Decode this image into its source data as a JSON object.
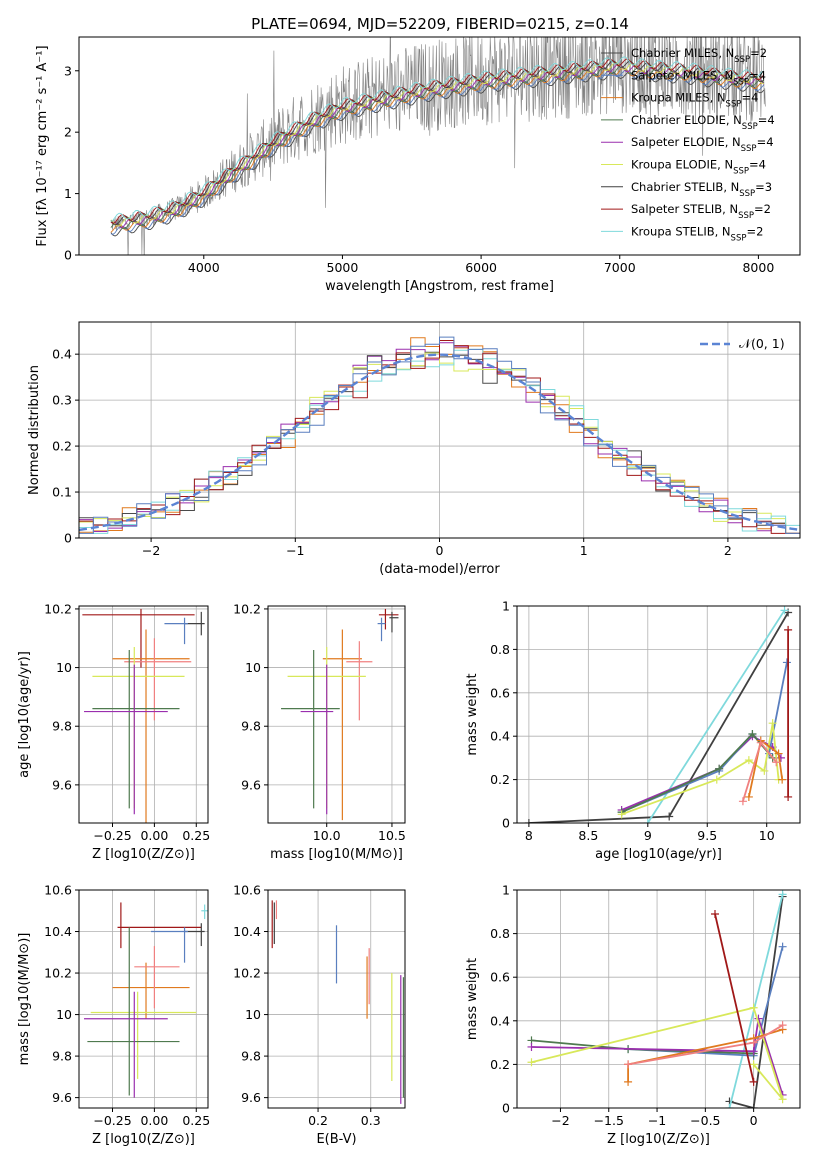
{
  "figure": {
    "title": "PLATE=0694, MJD=52209, FIBERID=0215, z=0.14"
  },
  "chart_data": [
    {
      "id": "spectrum",
      "type": "line",
      "xlabel": "wavelength [Angstrom, rest frame]",
      "ylabel": "Flux [fλ 10⁻¹⁷ erg cm⁻² s⁻¹ A⁻¹]",
      "xlim": [
        3100,
        8300
      ],
      "ylim": [
        0,
        3.55
      ],
      "xticks": [
        4000,
        5000,
        6000,
        7000,
        8000
      ],
      "yticks": [
        0,
        1,
        2,
        3
      ],
      "grid": false,
      "legend_position": "top-right",
      "data_continuum": {
        "x": [
          3350,
          3600,
          3800,
          4000,
          4200,
          4500,
          4800,
          5000,
          5300,
          5600,
          6000,
          6400,
          6800,
          7000,
          7200,
          7500,
          7800,
          8050
        ],
        "y": [
          0.5,
          0.6,
          0.75,
          1.0,
          1.35,
          1.85,
          2.25,
          2.45,
          2.6,
          2.75,
          2.9,
          3.0,
          3.1,
          3.15,
          3.1,
          3.05,
          2.95,
          2.9
        ]
      },
      "series": [
        {
          "name": "Chabrier MILES, N_SSP=2",
          "color": "#4a4a4a"
        },
        {
          "name": "Salpeter MILES, N_SSP=4",
          "color": "#5a7fbf"
        },
        {
          "name": "Kroupa MILES, N_SSP=4",
          "color": "#e07a1f"
        },
        {
          "name": "Chabrier ELODIE, N_SSP=4",
          "color": "#4f7a4f"
        },
        {
          "name": "Salpeter ELODIE, N_SSP=4",
          "color": "#9a2fae"
        },
        {
          "name": "Kroupa ELODIE, N_SSP=4",
          "color": "#d8e85a"
        },
        {
          "name": "Chabrier STELIB, N_SSP=3",
          "color": "#404040"
        },
        {
          "name": "Salpeter STELIB, N_SSP=2",
          "color": "#a01818"
        },
        {
          "name": "Kroupa STELIB, N_SSP=2",
          "color": "#7fd9dc"
        }
      ]
    },
    {
      "id": "residuals",
      "type": "line",
      "xlabel": "(data-model)/error",
      "ylabel": "Normed distribution",
      "xlim": [
        -2.5,
        2.5
      ],
      "ylim": [
        0,
        0.47
      ],
      "xticks": [
        -2,
        -1,
        0,
        1,
        2
      ],
      "yticks": [
        0.0,
        0.1,
        0.2,
        0.3,
        0.4
      ],
      "grid": true,
      "legend": "𝒩(0, 1)",
      "legend_position": "top-right",
      "normal_color": "#5b84d4",
      "hist_colors": [
        "#e07a1f",
        "#9a2fae",
        "#4a4a4a",
        "#d8e85a",
        "#7fd9dc",
        "#a01818",
        "#5a7fbf"
      ]
    },
    {
      "id": "age-vs-Z",
      "type": "scatter",
      "xlabel": "Z [log10(Z/Z⊙)]",
      "ylabel": "age [log10(age/yr)]",
      "xlim": [
        -0.45,
        0.32
      ],
      "ylim": [
        9.47,
        10.21
      ],
      "xticks": [
        -0.25,
        0.0,
        0.25
      ],
      "xticklabels": [
        "−0.25",
        "0.00",
        "0.25"
      ],
      "yticks": [
        9.6,
        9.8,
        10.0,
        10.2
      ],
      "grid": true,
      "points": [
        {
          "x": -0.08,
          "y": 10.18,
          "xerr": [
            0.35,
            0.32
          ],
          "yerr": [
            0.18,
            0.02
          ],
          "color": "#a01818"
        },
        {
          "x": 0.28,
          "y": 10.15,
          "xerr": [
            0.1,
            0.02
          ],
          "yerr": [
            0.04,
            0.04
          ],
          "color": "#404040"
        },
        {
          "x": 0.18,
          "y": 10.15,
          "xerr": [
            0.12,
            0.02
          ],
          "yerr": [
            0.07,
            0.02
          ],
          "color": "#5a7fbf"
        },
        {
          "x": -0.05,
          "y": 10.03,
          "xerr": [
            0.2,
            0.26
          ],
          "yerr": [
            0.6,
            0.1
          ],
          "color": "#e07a1f"
        },
        {
          "x": 0.0,
          "y": 10.02,
          "xerr": [
            0.18,
            0.22
          ],
          "yerr": [
            0.2,
            0.08
          ],
          "color": "#f08080"
        },
        {
          "x": -0.12,
          "y": 9.97,
          "xerr": [
            0.25,
            0.3
          ],
          "yerr": [
            0.45,
            0.1
          ],
          "color": "#d8e85a"
        },
        {
          "x": -0.15,
          "y": 9.86,
          "xerr": [
            0.22,
            0.3
          ],
          "yerr": [
            0.34,
            0.2
          ],
          "color": "#4f7a4f"
        },
        {
          "x": -0.12,
          "y": 9.85,
          "xerr": [
            0.3,
            0.2
          ],
          "yerr": [
            0.35,
            0.16
          ],
          "color": "#9a2fae"
        }
      ]
    },
    {
      "id": "age-vs-mass",
      "type": "scatter",
      "xlabel": "mass [log10(M/M⊙)]",
      "xlim": [
        9.55,
        10.6
      ],
      "ylim": [
        9.47,
        10.21
      ],
      "xticks": [
        10.0,
        10.5
      ],
      "xticklabels": [
        "10.0",
        "10.5"
      ],
      "yticks": [
        9.6,
        9.8,
        10.0,
        10.2
      ],
      "grid": true,
      "points": [
        {
          "x": 10.45,
          "y": 10.18,
          "xerr": [
            0.05,
            0.1
          ],
          "yerr": [
            0.05,
            0.02
          ],
          "color": "#a01818"
        },
        {
          "x": 10.5,
          "y": 10.17,
          "xerr": [
            0.02,
            0.05
          ],
          "yerr": [
            0.05,
            0.02
          ],
          "color": "#404040"
        },
        {
          "x": 10.42,
          "y": 10.15,
          "xerr": [
            0.03,
            0.03
          ],
          "yerr": [
            0.06,
            0.02
          ],
          "color": "#5a7fbf"
        },
        {
          "x": 10.12,
          "y": 10.03,
          "xerr": [
            0.15,
            0.15
          ],
          "yerr": [
            0.55,
            0.1
          ],
          "color": "#e07a1f"
        },
        {
          "x": 10.25,
          "y": 10.02,
          "xerr": [
            0.1,
            0.1
          ],
          "yerr": [
            0.2,
            0.07
          ],
          "color": "#f08080"
        },
        {
          "x": 10.0,
          "y": 9.97,
          "xerr": [
            0.3,
            0.3
          ],
          "yerr": [
            0.45,
            0.1
          ],
          "color": "#d8e85a"
        },
        {
          "x": 9.9,
          "y": 9.86,
          "xerr": [
            0.25,
            0.2
          ],
          "yerr": [
            0.34,
            0.2
          ],
          "color": "#4f7a4f"
        },
        {
          "x": 10.0,
          "y": 9.85,
          "xerr": [
            0.2,
            0.05
          ],
          "yerr": [
            0.35,
            0.16
          ],
          "color": "#9a2fae"
        }
      ]
    },
    {
      "id": "weight-vs-age",
      "type": "line",
      "xlabel": "age [log10(age/yr)]",
      "ylabel": "mass weight",
      "xlim": [
        7.9,
        10.28
      ],
      "ylim": [
        0,
        1.0
      ],
      "xticks": [
        8.0,
        8.5,
        9.0,
        9.5,
        10.0
      ],
      "yticks": [
        0.0,
        0.2,
        0.4,
        0.6,
        0.8,
        1.0
      ],
      "grid": true,
      "series": [
        {
          "color": "#404040",
          "x": [
            8.0,
            9.18,
            10.18
          ],
          "y": [
            0.0,
            0.03,
            0.97
          ]
        },
        {
          "color": "#7fd9dc",
          "x": [
            9.0,
            10.15
          ],
          "y": [
            0.0,
            0.98
          ]
        },
        {
          "color": "#9a2fae",
          "x": [
            8.78,
            9.6,
            9.88,
            10.05,
            10.12
          ],
          "y": [
            0.06,
            0.25,
            0.4,
            0.35,
            0.3
          ]
        },
        {
          "color": "#5a7fbf",
          "x": [
            8.78,
            9.6,
            9.88,
            10.02,
            10.17
          ],
          "y": [
            0.05,
            0.24,
            0.41,
            0.32,
            0.74
          ]
        },
        {
          "color": "#4f7a4f",
          "x": [
            8.78,
            9.6,
            9.88,
            10.05
          ],
          "y": [
            0.05,
            0.25,
            0.41,
            0.3
          ]
        },
        {
          "color": "#d8e85a",
          "x": [
            8.78,
            9.58,
            9.85,
            9.98,
            10.05,
            10.1
          ],
          "y": [
            0.04,
            0.2,
            0.29,
            0.24,
            0.46,
            0.2
          ]
        },
        {
          "color": "#e07a1f",
          "x": [
            9.85,
            9.95,
            10.1,
            10.13
          ],
          "y": [
            0.12,
            0.38,
            0.32,
            0.2
          ]
        },
        {
          "color": "#f08080",
          "x": [
            9.8,
            9.95,
            10.08
          ],
          "y": [
            0.1,
            0.37,
            0.28
          ]
        },
        {
          "color": "#a01818",
          "x": [
            10.18,
            10.18
          ],
          "y": [
            0.12,
            0.89
          ]
        }
      ]
    },
    {
      "id": "mass-vs-Z",
      "type": "scatter",
      "xlabel": "Z [log10(Z/Z⊙)]",
      "ylabel": "mass [log10(M/M⊙)]",
      "xlim": [
        -0.45,
        0.32
      ],
      "ylim": [
        9.55,
        10.6
      ],
      "xticks": [
        -0.25,
        0.0,
        0.25
      ],
      "xticklabels": [
        "−0.25",
        "0.00",
        "0.25"
      ],
      "yticks": [
        9.6,
        9.8,
        10.0,
        10.2,
        10.4,
        10.6
      ],
      "grid": true,
      "points": [
        {
          "x": -0.2,
          "y": 10.42,
          "xerr": [
            0.02,
            0.48
          ],
          "yerr": [
            0.1,
            0.12
          ],
          "color": "#a01818"
        },
        {
          "x": 0.28,
          "y": 10.4,
          "xerr": [
            0.1,
            0.02
          ],
          "yerr": [
            0.07,
            0.04
          ],
          "color": "#404040"
        },
        {
          "x": 0.18,
          "y": 10.4,
          "xerr": [
            0.2,
            0.02
          ],
          "yerr": [
            0.15,
            0.02
          ],
          "color": "#5a7fbf"
        },
        {
          "x": 0.3,
          "y": 10.5,
          "xerr": [
            0.02,
            0.02
          ],
          "yerr": [
            0.04,
            0.03
          ],
          "color": "#7fd9dc"
        },
        {
          "x": -0.05,
          "y": 10.13,
          "xerr": [
            0.2,
            0.26
          ],
          "yerr": [
            0.15,
            0.12
          ],
          "color": "#e07a1f"
        },
        {
          "x": 0.0,
          "y": 10.23,
          "xerr": [
            0.12,
            0.15
          ],
          "yerr": [
            0.2,
            0.1
          ],
          "color": "#f08080"
        },
        {
          "x": -0.1,
          "y": 10.01,
          "xerr": [
            0.28,
            0.35
          ],
          "yerr": [
            0.32,
            0.1
          ],
          "color": "#d8e85a"
        },
        {
          "x": -0.15,
          "y": 9.87,
          "xerr": [
            0.25,
            0.3
          ],
          "yerr": [
            0.26,
            0.55
          ],
          "color": "#4f7a4f"
        },
        {
          "x": -0.12,
          "y": 9.98,
          "xerr": [
            0.3,
            0.2
          ],
          "yerr": [
            0.38,
            0.13
          ],
          "color": "#9a2fae"
        }
      ]
    },
    {
      "id": "mass-vs-EBV",
      "type": "scatter",
      "xlabel": "E(B-V)",
      "xlim": [
        0.105,
        0.365
      ],
      "ylim": [
        9.55,
        10.6
      ],
      "xticks": [
        0.2,
        0.3
      ],
      "xticklabels": [
        "0.2",
        "0.3"
      ],
      "yticks": [
        9.6,
        9.8,
        10.0,
        10.2,
        10.4,
        10.6
      ],
      "grid": true,
      "points": [
        {
          "x": 0.113,
          "y": 10.42,
          "xerr": [
            0,
            0
          ],
          "yerr": [
            0.1,
            0.13
          ],
          "color": "#a01818"
        },
        {
          "x": 0.117,
          "y": 10.42,
          "xerr": [
            0,
            0
          ],
          "yerr": [
            0.08,
            0.12
          ],
          "color": "#404040"
        },
        {
          "x": 0.121,
          "y": 10.5,
          "xerr": [
            0,
            0
          ],
          "yerr": [
            0.04,
            0.05
          ],
          "color": "#f08080"
        },
        {
          "x": 0.235,
          "y": 10.3,
          "xerr": [
            0,
            0
          ],
          "yerr": [
            0.15,
            0.13
          ],
          "color": "#5a7fbf"
        },
        {
          "x": 0.293,
          "y": 10.13,
          "xerr": [
            0,
            0
          ],
          "yerr": [
            0.15,
            0.15
          ],
          "color": "#e07a1f"
        },
        {
          "x": 0.297,
          "y": 10.2,
          "xerr": [
            0,
            0
          ],
          "yerr": [
            0.15,
            0.12
          ],
          "color": "#f08080"
        },
        {
          "x": 0.34,
          "y": 9.95,
          "xerr": [
            0,
            0
          ],
          "yerr": [
            0.27,
            0.25
          ],
          "color": "#d8e85a"
        },
        {
          "x": 0.357,
          "y": 9.95,
          "xerr": [
            0,
            0
          ],
          "yerr": [
            0.38,
            0.24
          ],
          "color": "#9a2fae"
        },
        {
          "x": 0.362,
          "y": 9.9,
          "xerr": [
            0,
            0
          ],
          "yerr": [
            0.3,
            0.28
          ],
          "color": "#4f7a4f"
        }
      ]
    },
    {
      "id": "weight-vs-Z",
      "type": "line",
      "xlabel": "Z [log10(Z/Z⊙)]",
      "ylabel": "mass weight",
      "xlim": [
        -2.45,
        0.48
      ],
      "ylim": [
        0,
        1.0
      ],
      "xticks": [
        -2.0,
        -1.5,
        -1.0,
        -0.5,
        0.0
      ],
      "yticks": [
        0.0,
        0.2,
        0.4,
        0.6,
        0.8,
        1.0
      ],
      "grid": true,
      "series": [
        {
          "color": "#404040",
          "x": [
            -0.25,
            0.0,
            0.3
          ],
          "y": [
            0.03,
            0.0,
            0.97
          ]
        },
        {
          "color": "#7fd9dc",
          "x": [
            -0.25,
            0.3
          ],
          "y": [
            0.0,
            0.98
          ]
        },
        {
          "color": "#5a7fbf",
          "x": [
            -1.3,
            0.0,
            0.3
          ],
          "y": [
            0.27,
            0.24,
            0.74
          ]
        },
        {
          "color": "#4f7a4f",
          "x": [
            -2.3,
            -1.3,
            0.0
          ],
          "y": [
            0.31,
            0.27,
            0.25
          ]
        },
        {
          "color": "#9a2fae",
          "x": [
            -2.3,
            0.0,
            0.05,
            0.3
          ],
          "y": [
            0.28,
            0.26,
            0.41,
            0.06
          ]
        },
        {
          "color": "#d8e85a",
          "x": [
            -2.3,
            0.0,
            0.3,
            0.0
          ],
          "y": [
            0.21,
            0.46,
            0.04,
            0.2
          ]
        },
        {
          "color": "#e07a1f",
          "x": [
            -1.3,
            -1.3,
            0.0,
            0.3
          ],
          "y": [
            0.12,
            0.2,
            0.32,
            0.36
          ]
        },
        {
          "color": "#f08080",
          "x": [
            -1.3,
            0.0,
            0.3
          ],
          "y": [
            0.2,
            0.3,
            0.38
          ]
        },
        {
          "color": "#a01818",
          "x": [
            -0.4,
            0.0
          ],
          "y": [
            0.89,
            0.12
          ]
        }
      ]
    }
  ]
}
